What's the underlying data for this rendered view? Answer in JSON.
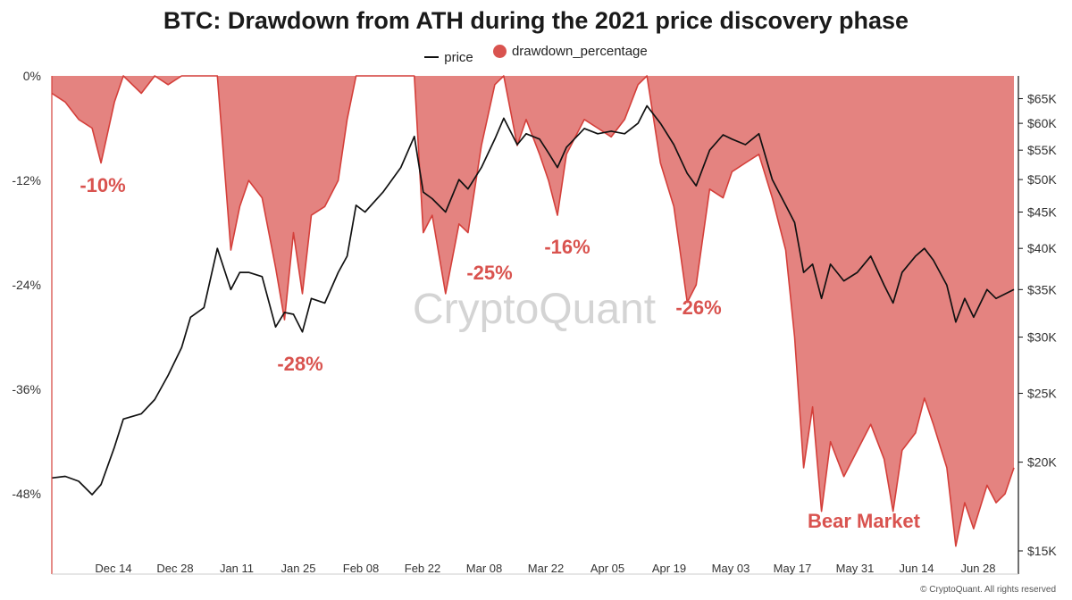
{
  "chart_data": {
    "type": "area",
    "title": "BTC: Drawdown from ATH during the 2021 price discovery phase",
    "legend": [
      {
        "name": "price",
        "marker": "line",
        "color": "#111111"
      },
      {
        "name": "drawdown_percentage",
        "marker": "dot",
        "color": "#d9534f"
      }
    ],
    "legend_position": "top-center",
    "grid": false,
    "left_axis": {
      "ticks": [
        "0%",
        "-12%",
        "-24%",
        "-36%",
        "-48%"
      ],
      "values": [
        0,
        -12,
        -24,
        -36,
        -48
      ],
      "range": [
        -57,
        0
      ]
    },
    "right_axis": {
      "scale": "log",
      "ticks": [
        "$65K",
        "$60K",
        "$55K",
        "$50K",
        "$45K",
        "$40K",
        "$35K",
        "$30K",
        "$25K",
        "$20K",
        "$15K"
      ],
      "values": [
        65000,
        60000,
        55000,
        50000,
        45000,
        40000,
        35000,
        30000,
        25000,
        20000,
        15000
      ]
    },
    "x_axis": {
      "ticks": [
        "Dec 14",
        "Dec 28",
        "Jan 11",
        "Jan 25",
        "Feb 08",
        "Feb 22",
        "Mar 08",
        "Mar 22",
        "Apr 05",
        "Apr 19",
        "May 03",
        "May 17",
        "May 31",
        "Jun 14",
        "Jun 28"
      ]
    },
    "x_range": [
      "2020-12-02",
      "2021-07-06"
    ],
    "series": [
      {
        "name": "drawdown_percentage",
        "points": [
          [
            "2020-12-02",
            -2
          ],
          [
            "2020-12-05",
            -3
          ],
          [
            "2020-12-08",
            -5
          ],
          [
            "2020-12-11",
            -6
          ],
          [
            "2020-12-13",
            -10
          ],
          [
            "2020-12-16",
            -3
          ],
          [
            "2020-12-18",
            0
          ],
          [
            "2020-12-22",
            -2
          ],
          [
            "2020-12-25",
            0
          ],
          [
            "2020-12-28",
            -1
          ],
          [
            "2020-12-31",
            0
          ],
          [
            "2021-01-02",
            0
          ],
          [
            "2021-01-05",
            0
          ],
          [
            "2021-01-08",
            0
          ],
          [
            "2021-01-11",
            -20
          ],
          [
            "2021-01-13",
            -15
          ],
          [
            "2021-01-15",
            -12
          ],
          [
            "2021-01-18",
            -14
          ],
          [
            "2021-01-21",
            -22
          ],
          [
            "2021-01-23",
            -28
          ],
          [
            "2021-01-25",
            -18
          ],
          [
            "2021-01-27",
            -25
          ],
          [
            "2021-01-29",
            -16
          ],
          [
            "2021-02-01",
            -15
          ],
          [
            "2021-02-04",
            -12
          ],
          [
            "2021-02-06",
            -5
          ],
          [
            "2021-02-08",
            0
          ],
          [
            "2021-02-10",
            0
          ],
          [
            "2021-02-14",
            0
          ],
          [
            "2021-02-18",
            0
          ],
          [
            "2021-02-21",
            0
          ],
          [
            "2021-02-23",
            -18
          ],
          [
            "2021-02-25",
            -16
          ],
          [
            "2021-02-28",
            -25
          ],
          [
            "2021-03-03",
            -17
          ],
          [
            "2021-03-05",
            -18
          ],
          [
            "2021-03-08",
            -8
          ],
          [
            "2021-03-11",
            -1
          ],
          [
            "2021-03-13",
            0
          ],
          [
            "2021-03-16",
            -8
          ],
          [
            "2021-03-18",
            -5
          ],
          [
            "2021-03-21",
            -9
          ],
          [
            "2021-03-23",
            -12
          ],
          [
            "2021-03-25",
            -16
          ],
          [
            "2021-03-27",
            -9
          ],
          [
            "2021-03-31",
            -5
          ],
          [
            "2021-04-03",
            -6
          ],
          [
            "2021-04-06",
            -7
          ],
          [
            "2021-04-09",
            -5
          ],
          [
            "2021-04-12",
            -1
          ],
          [
            "2021-04-14",
            0
          ],
          [
            "2021-04-17",
            -10
          ],
          [
            "2021-04-20",
            -15
          ],
          [
            "2021-04-23",
            -26
          ],
          [
            "2021-04-25",
            -24
          ],
          [
            "2021-04-28",
            -13
          ],
          [
            "2021-05-01",
            -14
          ],
          [
            "2021-05-03",
            -11
          ],
          [
            "2021-05-06",
            -10
          ],
          [
            "2021-05-09",
            -9
          ],
          [
            "2021-05-12",
            -14
          ],
          [
            "2021-05-15",
            -20
          ],
          [
            "2021-05-17",
            -30
          ],
          [
            "2021-05-19",
            -45
          ],
          [
            "2021-05-21",
            -38
          ],
          [
            "2021-05-23",
            -50
          ],
          [
            "2021-05-25",
            -42
          ],
          [
            "2021-05-28",
            -46
          ],
          [
            "2021-05-31",
            -43
          ],
          [
            "2021-06-03",
            -40
          ],
          [
            "2021-06-06",
            -44
          ],
          [
            "2021-06-08",
            -50
          ],
          [
            "2021-06-10",
            -43
          ],
          [
            "2021-06-13",
            -41
          ],
          [
            "2021-06-15",
            -37
          ],
          [
            "2021-06-17",
            -40
          ],
          [
            "2021-06-20",
            -45
          ],
          [
            "2021-06-22",
            -54
          ],
          [
            "2021-06-24",
            -49
          ],
          [
            "2021-06-26",
            -52
          ],
          [
            "2021-06-29",
            -47
          ],
          [
            "2021-07-01",
            -49
          ],
          [
            "2021-07-03",
            -48
          ],
          [
            "2021-07-05",
            -45
          ]
        ]
      },
      {
        "name": "price",
        "points": [
          [
            "2020-12-02",
            19000
          ],
          [
            "2020-12-05",
            19100
          ],
          [
            "2020-12-08",
            18800
          ],
          [
            "2020-12-11",
            18000
          ],
          [
            "2020-12-13",
            18600
          ],
          [
            "2020-12-16",
            21000
          ],
          [
            "2020-12-18",
            23000
          ],
          [
            "2020-12-22",
            23400
          ],
          [
            "2020-12-25",
            24500
          ],
          [
            "2020-12-28",
            26500
          ],
          [
            "2020-12-31",
            29000
          ],
          [
            "2021-01-02",
            32000
          ],
          [
            "2021-01-05",
            33000
          ],
          [
            "2021-01-08",
            40000
          ],
          [
            "2021-01-11",
            35000
          ],
          [
            "2021-01-13",
            37000
          ],
          [
            "2021-01-15",
            37000
          ],
          [
            "2021-01-18",
            36500
          ],
          [
            "2021-01-21",
            31000
          ],
          [
            "2021-01-23",
            32500
          ],
          [
            "2021-01-25",
            32300
          ],
          [
            "2021-01-27",
            30500
          ],
          [
            "2021-01-29",
            34000
          ],
          [
            "2021-02-01",
            33500
          ],
          [
            "2021-02-04",
            37000
          ],
          [
            "2021-02-06",
            39000
          ],
          [
            "2021-02-08",
            46000
          ],
          [
            "2021-02-10",
            45000
          ],
          [
            "2021-02-14",
            48000
          ],
          [
            "2021-02-18",
            52000
          ],
          [
            "2021-02-21",
            57500
          ],
          [
            "2021-02-23",
            48000
          ],
          [
            "2021-02-25",
            47000
          ],
          [
            "2021-02-28",
            45000
          ],
          [
            "2021-03-03",
            50000
          ],
          [
            "2021-03-05",
            48500
          ],
          [
            "2021-03-08",
            52000
          ],
          [
            "2021-03-11",
            57000
          ],
          [
            "2021-03-13",
            61000
          ],
          [
            "2021-03-16",
            56000
          ],
          [
            "2021-03-18",
            58000
          ],
          [
            "2021-03-21",
            57000
          ],
          [
            "2021-03-23",
            54500
          ],
          [
            "2021-03-25",
            52000
          ],
          [
            "2021-03-27",
            55500
          ],
          [
            "2021-03-31",
            59000
          ],
          [
            "2021-04-03",
            58000
          ],
          [
            "2021-04-06",
            58500
          ],
          [
            "2021-04-09",
            58000
          ],
          [
            "2021-04-12",
            60000
          ],
          [
            "2021-04-14",
            63500
          ],
          [
            "2021-04-17",
            60000
          ],
          [
            "2021-04-20",
            56000
          ],
          [
            "2021-04-23",
            51000
          ],
          [
            "2021-04-25",
            49000
          ],
          [
            "2021-04-28",
            55000
          ],
          [
            "2021-05-01",
            57800
          ],
          [
            "2021-05-03",
            57000
          ],
          [
            "2021-05-06",
            56000
          ],
          [
            "2021-05-09",
            58000
          ],
          [
            "2021-05-12",
            50000
          ],
          [
            "2021-05-15",
            46000
          ],
          [
            "2021-05-17",
            43500
          ],
          [
            "2021-05-19",
            37000
          ],
          [
            "2021-05-21",
            38000
          ],
          [
            "2021-05-23",
            34000
          ],
          [
            "2021-05-25",
            38000
          ],
          [
            "2021-05-28",
            36000
          ],
          [
            "2021-05-31",
            37000
          ],
          [
            "2021-06-03",
            39000
          ],
          [
            "2021-06-06",
            35500
          ],
          [
            "2021-06-08",
            33500
          ],
          [
            "2021-06-10",
            37000
          ],
          [
            "2021-06-13",
            39000
          ],
          [
            "2021-06-15",
            40000
          ],
          [
            "2021-06-17",
            38500
          ],
          [
            "2021-06-20",
            35500
          ],
          [
            "2021-06-22",
            31500
          ],
          [
            "2021-06-24",
            34000
          ],
          [
            "2021-06-26",
            32000
          ],
          [
            "2021-06-29",
            35000
          ],
          [
            "2021-07-01",
            34000
          ],
          [
            "2021-07-03",
            34500
          ],
          [
            "2021-07-05",
            35000
          ]
        ]
      }
    ],
    "annotations": [
      {
        "text": "-10%",
        "date": "2020-12-13",
        "value": -10
      },
      {
        "text": "-28%",
        "date": "2021-01-24",
        "value": -28
      },
      {
        "text": "-25%",
        "date": "2021-03-02",
        "value": -25
      },
      {
        "text": "-16%",
        "date": "2021-03-27",
        "value": -16
      },
      {
        "text": "-26%",
        "date": "2021-04-27",
        "value": -26
      },
      {
        "text": "Bear Market",
        "date": "2021-06-08",
        "value": -50
      }
    ],
    "colors": {
      "area_fill": "#d9534f",
      "area_stroke": "#d43f3a",
      "annotation": "#d9534f",
      "price": "#111111",
      "watermark": "#d4d4d4"
    }
  },
  "watermark": "CryptoQuant",
  "footer": "© CryptoQuant. All rights reserved"
}
